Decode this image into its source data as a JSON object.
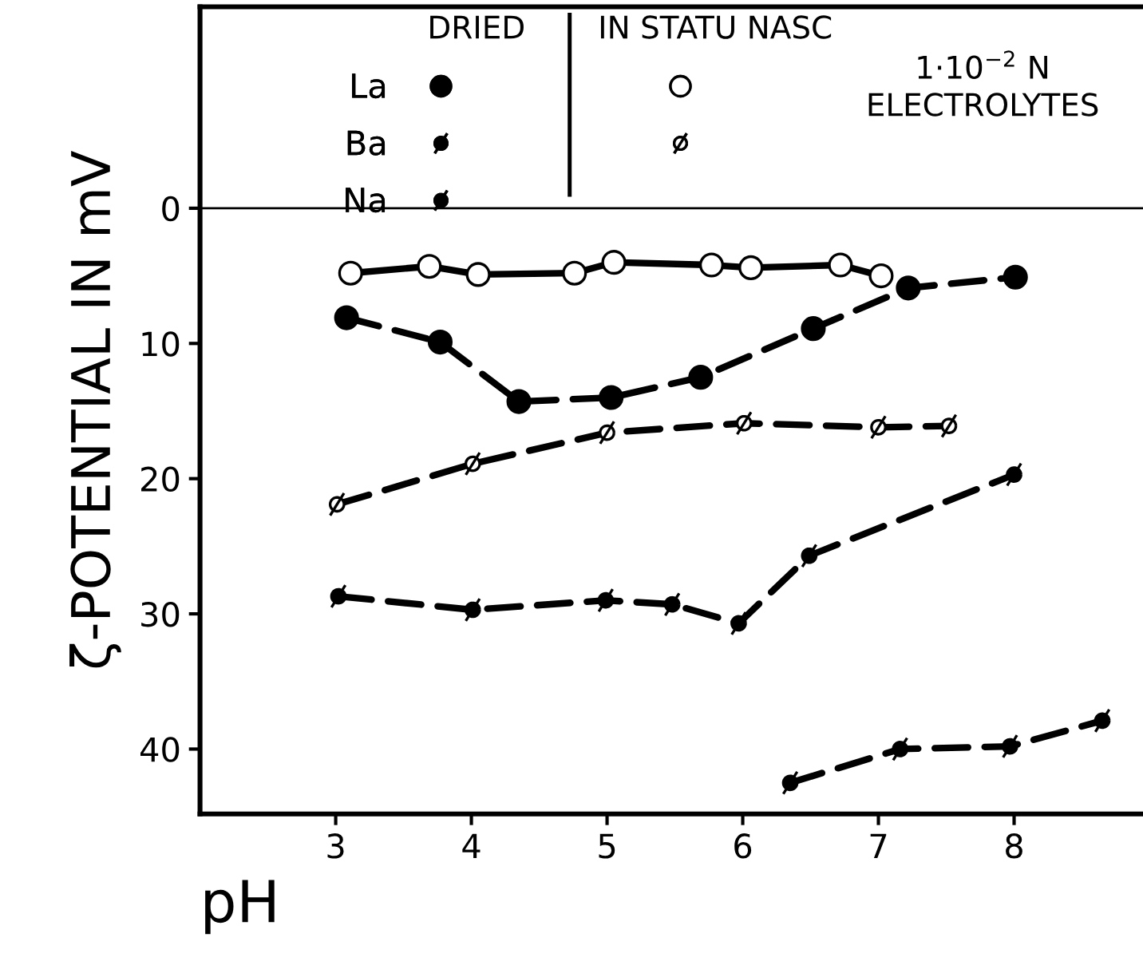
{
  "chart_data": {
    "type": "line",
    "xlabel": "pH",
    "ylabel": "ζ-POTENTIAL IN mV",
    "xlim": [
      2,
      8.95
    ],
    "xticks": [
      3,
      4,
      5,
      6,
      7,
      8
    ],
    "ylim": [
      44.8,
      -14.9
    ],
    "yticks": [
      0,
      10,
      20,
      30,
      40
    ],
    "grid": false,
    "legend": "top left",
    "ref_lines": [
      {
        "axis": "y",
        "value": 0,
        "color": "#000000",
        "line_style": "solid"
      }
    ],
    "annotations": [
      "DRIED",
      "IN STATU NASC",
      "1·10$^{−2}$ N\nELECTROLYTES"
    ],
    "series": [
      {
        "name": "La",
        "color": "#000000",
        "marker": "circle",
        "line_style": "dashed",
        "x": [
          3.08,
          3.77,
          4.35,
          5.03,
          5.69,
          6.52,
          7.22,
          8.01
        ],
        "values": [
          8.1,
          9.9,
          14.3,
          14.0,
          12.5,
          8.9,
          5.9,
          5.1
        ]
      },
      {
        "name": "Ba",
        "color": "#000000",
        "marker": "cross",
        "line_style": "dashed",
        "x": [
          3.02,
          4.01,
          4.99,
          5.48,
          5.97,
          6.49,
          8.0
        ],
        "values": [
          28.7,
          29.7,
          29.0,
          29.3,
          30.7,
          25.7,
          19.7
        ]
      },
      {
        "name": "Na",
        "color": "#000000",
        "marker": "cross",
        "line_style": "dashed",
        "x": [
          6.35,
          7.16,
          7.97,
          8.65
        ],
        "values": [
          42.5,
          40.0,
          39.8,
          37.9
        ]
      },
      {
        "color": "#000000",
        "marker": "circle",
        "line_style": "solid",
        "x": [
          3.11,
          3.69,
          4.05,
          4.76,
          5.05,
          5.77,
          6.06,
          6.72,
          7.02
        ],
        "values": [
          4.8,
          4.3,
          4.9,
          4.8,
          4.0,
          4.2,
          4.4,
          4.2,
          5.0
        ]
      },
      {
        "color": "#000000",
        "marker": "cross",
        "line_style": "dashed",
        "x": [
          3.01,
          4.01,
          5.0,
          6.01,
          7.0,
          7.52
        ],
        "values": [
          21.9,
          18.9,
          16.6,
          15.9,
          16.2,
          16.1
        ]
      }
    ]
  }
}
